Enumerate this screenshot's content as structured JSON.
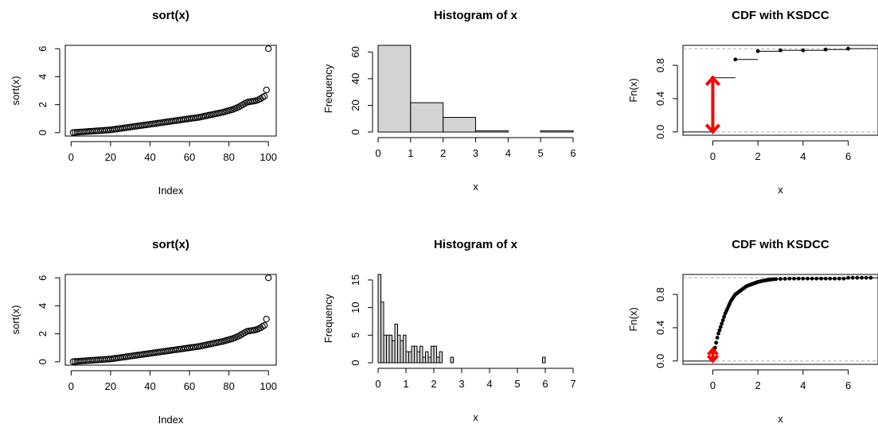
{
  "chart_data": [
    {
      "type": "scatter",
      "title": "sort(x)",
      "xlabel": "Index",
      "ylabel": "sort(x)",
      "xlim": [
        1,
        100
      ],
      "ylim": [
        0,
        6
      ],
      "xticks": [
        "0",
        "20",
        "40",
        "60",
        "80",
        "100"
      ],
      "yticks": [
        "0",
        "2",
        "4",
        "6"
      ],
      "x": [
        1,
        2,
        3,
        4,
        5,
        6,
        7,
        8,
        9,
        10,
        11,
        12,
        13,
        14,
        15,
        16,
        17,
        18,
        19,
        20,
        21,
        22,
        23,
        24,
        25,
        26,
        27,
        28,
        29,
        30,
        31,
        32,
        33,
        34,
        35,
        36,
        37,
        38,
        39,
        40,
        41,
        42,
        43,
        44,
        45,
        46,
        47,
        48,
        49,
        50,
        51,
        52,
        53,
        54,
        55,
        56,
        57,
        58,
        59,
        60,
        61,
        62,
        63,
        64,
        65,
        66,
        67,
        68,
        69,
        70,
        71,
        72,
        73,
        74,
        75,
        76,
        77,
        78,
        79,
        80,
        81,
        82,
        83,
        84,
        85,
        86,
        87,
        88,
        89,
        90,
        91,
        92,
        93,
        94,
        95,
        96,
        97,
        98,
        99,
        100
      ],
      "y": [
        0.01,
        0.02,
        0.03,
        0.04,
        0.05,
        0.06,
        0.07,
        0.08,
        0.09,
        0.1,
        0.11,
        0.12,
        0.13,
        0.14,
        0.15,
        0.16,
        0.17,
        0.18,
        0.19,
        0.2,
        0.22,
        0.24,
        0.26,
        0.28,
        0.3,
        0.32,
        0.34,
        0.36,
        0.38,
        0.4,
        0.42,
        0.44,
        0.46,
        0.48,
        0.5,
        0.52,
        0.54,
        0.56,
        0.58,
        0.6,
        0.62,
        0.64,
        0.66,
        0.68,
        0.7,
        0.72,
        0.74,
        0.76,
        0.78,
        0.8,
        0.82,
        0.84,
        0.86,
        0.88,
        0.9,
        0.92,
        0.94,
        0.96,
        0.98,
        1.0,
        1.02,
        1.04,
        1.06,
        1.08,
        1.1,
        1.13,
        1.16,
        1.19,
        1.22,
        1.25,
        1.28,
        1.31,
        1.34,
        1.37,
        1.4,
        1.43,
        1.46,
        1.5,
        1.54,
        1.58,
        1.62,
        1.66,
        1.72,
        1.78,
        1.84,
        1.92,
        2.0,
        2.08,
        2.16,
        2.2,
        2.22,
        2.24,
        2.26,
        2.3,
        2.36,
        2.42,
        2.52,
        2.6,
        3.05,
        6.0
      ]
    },
    {
      "type": "bar",
      "title": "Histogram of x",
      "xlabel": "x",
      "ylabel": "Frequency",
      "xlim": [
        0,
        6
      ],
      "ylim": [
        0,
        65
      ],
      "xticks": [
        "0",
        "1",
        "2",
        "3",
        "4",
        "5",
        "6"
      ],
      "yticks": [
        "0",
        "20",
        "40",
        "60"
      ],
      "bins": [
        [
          0,
          1
        ],
        [
          1,
          2
        ],
        [
          2,
          3
        ],
        [
          3,
          4
        ],
        [
          4,
          5
        ],
        [
          5,
          6
        ]
      ],
      "values": [
        65,
        22,
        11,
        1,
        0,
        1
      ]
    },
    {
      "type": "line",
      "title": "CDF with KSDCC",
      "xlabel": "x",
      "ylabel": "Fn(x)",
      "xlim": [
        -1,
        7
      ],
      "ylim": [
        0,
        1
      ],
      "xticks": [
        "0",
        "2",
        "4",
        "6"
      ],
      "yticks": [
        "0.0",
        "0.4",
        "0.8"
      ],
      "x": [
        0,
        1,
        2,
        3,
        4,
        5,
        6
      ],
      "y": [
        0.65,
        0.87,
        0.97,
        0.98,
        0.98,
        0.99,
        1.0
      ],
      "ksdcc": {
        "x": 0,
        "from": 0.0,
        "to": 0.65,
        "color": "#ff0000"
      }
    },
    {
      "type": "scatter",
      "title": "sort(x)",
      "xlabel": "Index",
      "ylabel": "sort(x)",
      "xlim": [
        1,
        100
      ],
      "ylim": [
        0,
        6
      ],
      "xticks": [
        "0",
        "20",
        "40",
        "60",
        "80",
        "100"
      ],
      "yticks": [
        "0",
        "2",
        "4",
        "6"
      ],
      "x": [
        1,
        2,
        3,
        4,
        5,
        6,
        7,
        8,
        9,
        10,
        11,
        12,
        13,
        14,
        15,
        16,
        17,
        18,
        19,
        20,
        21,
        22,
        23,
        24,
        25,
        26,
        27,
        28,
        29,
        30,
        31,
        32,
        33,
        34,
        35,
        36,
        37,
        38,
        39,
        40,
        41,
        42,
        43,
        44,
        45,
        46,
        47,
        48,
        49,
        50,
        51,
        52,
        53,
        54,
        55,
        56,
        57,
        58,
        59,
        60,
        61,
        62,
        63,
        64,
        65,
        66,
        67,
        68,
        69,
        70,
        71,
        72,
        73,
        74,
        75,
        76,
        77,
        78,
        79,
        80,
        81,
        82,
        83,
        84,
        85,
        86,
        87,
        88,
        89,
        90,
        91,
        92,
        93,
        94,
        95,
        96,
        97,
        98,
        99,
        100
      ],
      "y": [
        0.01,
        0.02,
        0.03,
        0.04,
        0.05,
        0.06,
        0.07,
        0.08,
        0.09,
        0.1,
        0.11,
        0.12,
        0.13,
        0.14,
        0.15,
        0.16,
        0.17,
        0.18,
        0.19,
        0.2,
        0.22,
        0.24,
        0.26,
        0.28,
        0.3,
        0.32,
        0.34,
        0.36,
        0.38,
        0.4,
        0.42,
        0.44,
        0.46,
        0.48,
        0.5,
        0.52,
        0.54,
        0.56,
        0.58,
        0.6,
        0.62,
        0.64,
        0.66,
        0.68,
        0.7,
        0.72,
        0.74,
        0.76,
        0.78,
        0.8,
        0.82,
        0.84,
        0.86,
        0.88,
        0.9,
        0.92,
        0.94,
        0.96,
        0.98,
        1.0,
        1.02,
        1.04,
        1.06,
        1.08,
        1.1,
        1.13,
        1.16,
        1.19,
        1.22,
        1.25,
        1.28,
        1.31,
        1.34,
        1.37,
        1.4,
        1.43,
        1.46,
        1.5,
        1.54,
        1.58,
        1.62,
        1.66,
        1.72,
        1.78,
        1.84,
        1.92,
        2.0,
        2.08,
        2.16,
        2.2,
        2.22,
        2.24,
        2.26,
        2.3,
        2.36,
        2.42,
        2.52,
        2.6,
        3.05,
        6.0
      ]
    },
    {
      "type": "bar",
      "title": "Histogram of x",
      "xlabel": "x",
      "ylabel": "Frequency",
      "xlim": [
        0,
        7
      ],
      "ylim": [
        0,
        16
      ],
      "xticks": [
        "0",
        "1",
        "2",
        "3",
        "4",
        "5",
        "6",
        "7"
      ],
      "yticks": [
        "0",
        "5",
        "10",
        "15"
      ],
      "bin_width": 0.1,
      "bin_start": 0,
      "values": [
        16,
        11,
        5,
        5,
        5,
        4,
        7,
        5,
        4,
        5,
        2,
        2,
        3,
        3,
        2,
        3,
        1,
        2,
        1,
        3,
        3,
        1,
        2,
        0,
        0,
        0,
        1,
        0,
        0,
        0,
        0,
        0,
        0,
        0,
        0,
        0,
        0,
        0,
        0,
        0,
        0,
        0,
        0,
        0,
        0,
        0,
        0,
        0,
        0,
        0,
        0,
        0,
        0,
        0,
        0,
        0,
        0,
        0,
        0,
        1,
        0,
        0,
        0,
        0,
        0,
        0,
        0,
        0,
        0,
        0
      ]
    },
    {
      "type": "line",
      "title": "CDF with KSDCC",
      "xlabel": "x",
      "ylabel": "Fn(x)",
      "xlim": [
        -1,
        7
      ],
      "ylim": [
        0,
        1
      ],
      "xticks": [
        "0",
        "2",
        "4",
        "6"
      ],
      "yticks": [
        "0.0",
        "0.4",
        "0.8"
      ],
      "x": [
        0.01,
        0.05,
        0.1,
        0.15,
        0.2,
        0.25,
        0.3,
        0.35,
        0.4,
        0.45,
        0.5,
        0.55,
        0.6,
        0.65,
        0.7,
        0.75,
        0.8,
        0.85,
        0.9,
        0.95,
        1.0,
        1.05,
        1.1,
        1.15,
        1.2,
        1.25,
        1.3,
        1.35,
        1.4,
        1.45,
        1.5,
        1.55,
        1.6,
        1.65,
        1.7,
        1.75,
        1.8,
        1.85,
        1.9,
        1.95,
        2.0,
        2.05,
        2.1,
        2.15,
        2.2,
        2.25,
        2.3,
        2.35,
        2.4,
        2.45,
        2.5,
        2.55,
        2.6,
        2.7,
        2.8,
        3.0,
        3.2,
        3.4,
        3.6,
        3.8,
        4.0,
        4.2,
        4.4,
        4.6,
        4.8,
        5.0,
        5.2,
        5.4,
        5.6,
        5.8,
        6.0,
        6.2,
        6.4,
        6.6,
        6.8,
        7.0
      ],
      "y": [
        0.02,
        0.14,
        0.16,
        0.22,
        0.28,
        0.33,
        0.37,
        0.41,
        0.45,
        0.49,
        0.53,
        0.57,
        0.6,
        0.63,
        0.66,
        0.69,
        0.72,
        0.74,
        0.76,
        0.78,
        0.8,
        0.81,
        0.82,
        0.83,
        0.84,
        0.85,
        0.86,
        0.87,
        0.88,
        0.89,
        0.9,
        0.905,
        0.91,
        0.915,
        0.92,
        0.925,
        0.93,
        0.935,
        0.94,
        0.945,
        0.95,
        0.953,
        0.956,
        0.959,
        0.962,
        0.965,
        0.968,
        0.97,
        0.972,
        0.974,
        0.976,
        0.978,
        0.98,
        0.982,
        0.984,
        0.986,
        0.988,
        0.99,
        0.99,
        0.99,
        0.99,
        0.99,
        0.99,
        0.99,
        0.99,
        0.99,
        0.99,
        0.99,
        0.99,
        0.99,
        1.0,
        1.0,
        1.0,
        1.0,
        1.0,
        1.0
      ],
      "ksdcc": {
        "x": 0,
        "from": 0.0,
        "to": 0.14,
        "color": "#ff0000"
      }
    }
  ]
}
